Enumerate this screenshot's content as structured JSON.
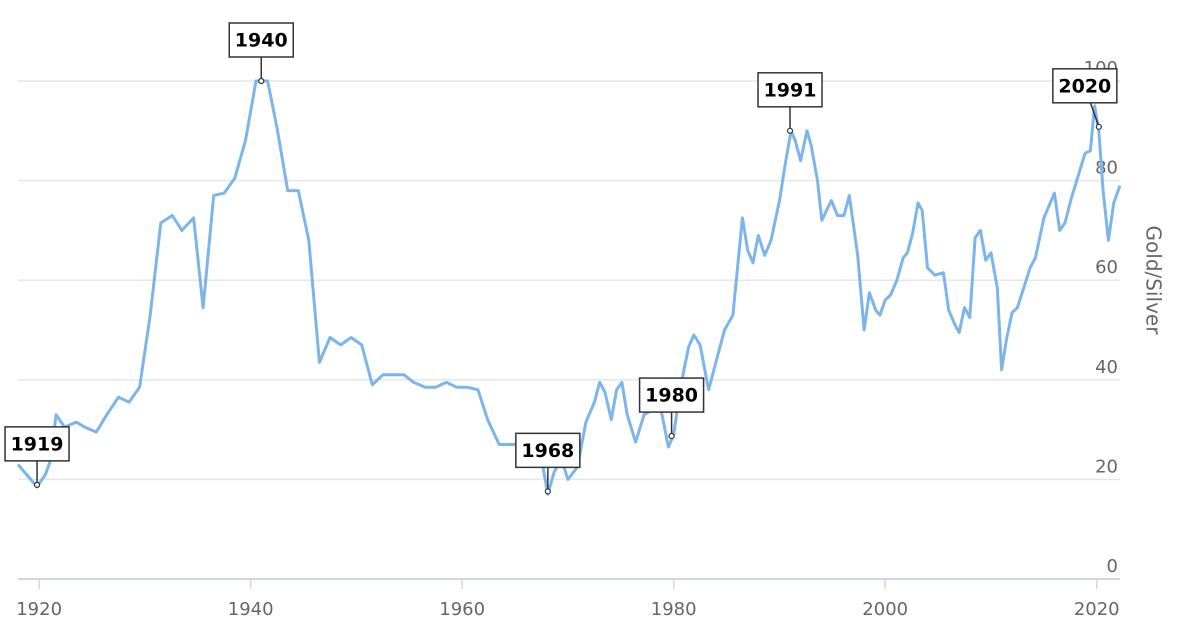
{
  "chart_data": {
    "type": "line",
    "y_label": "Gold/Silver",
    "xlim": [
      1918,
      2022.2
    ],
    "ylim": [
      0,
      100
    ],
    "xticks": [
      1920,
      1940,
      1960,
      1980,
      2000,
      2020
    ],
    "yticks": [
      0,
      20,
      40,
      60,
      80,
      100
    ],
    "grid": true,
    "series": [
      {
        "name": "Gold/Silver",
        "color": "#7cb5ec",
        "x": [
          1918.0,
          1919.0,
          1919.8,
          1920.6,
          1921.1,
          1921.6,
          1922.4,
          1923.5,
          1924.3,
          1925.4,
          1926.4,
          1927.5,
          1928.5,
          1929.5,
          1930.5,
          1931.5,
          1932.6,
          1933.5,
          1934.6,
          1935.5,
          1936.5,
          1937.5,
          1938.5,
          1939.5,
          1940.5,
          1941.6,
          1942.5,
          1943.5,
          1944.5,
          1945.5,
          1946.5,
          1947.5,
          1948.5,
          1949.5,
          1950.5,
          1951.5,
          1952.5,
          1954.5,
          1955.4,
          1956.5,
          1957.5,
          1958.5,
          1959.5,
          1960.5,
          1961.5,
          1962.4,
          1963.5,
          1964.5,
          1965.5,
          1966.5,
          1967.4,
          1968.1,
          1968.7,
          1969.4,
          1970.0,
          1970.9,
          1971.7,
          1972.5,
          1973.0,
          1973.5,
          1974.1,
          1974.6,
          1975.1,
          1975.6,
          1976.4,
          1977.2,
          1978.0,
          1978.8,
          1979.5,
          1980.0,
          1980.6,
          1981.4,
          1981.9,
          1982.5,
          1983.3,
          1984.8,
          1985.6,
          1986.5,
          1987.0,
          1987.5,
          1988.0,
          1988.6,
          1989.2,
          1990.0,
          1990.6,
          1991.1,
          1991.5,
          1992.0,
          1992.6,
          1993.0,
          1993.6,
          1994.0,
          1994.9,
          1995.5,
          1996.1,
          1996.6,
          1997.4,
          1998.0,
          1998.5,
          1999.1,
          1999.5,
          2000.0,
          2000.5,
          2001.1,
          2001.7,
          2002.1,
          2002.6,
          2003.1,
          2003.5,
          2004.0,
          2004.7,
          2005.5,
          2006.0,
          2006.6,
          2007.0,
          2007.5,
          2008.0,
          2008.5,
          2009.0,
          2009.5,
          2010.0,
          2010.6,
          2011.0,
          2011.5,
          2012.0,
          2012.5,
          2013.1,
          2013.7,
          2014.2,
          2015.0,
          2016.0,
          2016.5,
          2017.0,
          2017.6,
          2018.9,
          2019.4,
          2019.8,
          2020.2,
          2020.6,
          2021.1,
          2021.6,
          2022.2
        ],
        "values": [
          23,
          20.5,
          18.5,
          21,
          24,
          33,
          30.5,
          31.5,
          30.5,
          29.5,
          33,
          36.5,
          35.5,
          38.5,
          53,
          71.5,
          73,
          70,
          72.5,
          54.5,
          77,
          77.5,
          80.5,
          88,
          100,
          100,
          90.5,
          78,
          78,
          68,
          43.5,
          48.5,
          47,
          48.5,
          47,
          39,
          41,
          41,
          39.5,
          38.5,
          38.5,
          39.5,
          38.5,
          38.5,
          38,
          32,
          27,
          27,
          27,
          26.5,
          25.5,
          17,
          21.5,
          24,
          20,
          22.5,
          31.5,
          35.5,
          39.5,
          37.5,
          32,
          38,
          39.5,
          33,
          27.5,
          33,
          34,
          34,
          26.5,
          29,
          38,
          46.5,
          49,
          47,
          38,
          50,
          53,
          72.5,
          66,
          63.5,
          69,
          65,
          68,
          76,
          84,
          90,
          88,
          84,
          90,
          87,
          80,
          72,
          76,
          73,
          73,
          77,
          65,
          50,
          57.5,
          54,
          53,
          56,
          57,
          60,
          64.5,
          65.5,
          69.5,
          75.5,
          74,
          62.5,
          61,
          61.5,
          54,
          51,
          49.5,
          54.5,
          52.5,
          68.5,
          70,
          64,
          65.5,
          58.5,
          42,
          48.5,
          53.5,
          54.5,
          58.5,
          62.5,
          64.5,
          72.5,
          77.5,
          70,
          71.5,
          76.5,
          85.5,
          86,
          95,
          90,
          78,
          68,
          75.5,
          79
        ]
      }
    ],
    "annotations": [
      {
        "label": "1919",
        "x": 1919.8,
        "y": 18.9
      },
      {
        "label": "1940",
        "x": 1941.0,
        "y": 100
      },
      {
        "label": "1968",
        "x": 1968.1,
        "y": 17.6
      },
      {
        "label": "1980",
        "x": 1979.8,
        "y": 28.7
      },
      {
        "label": "1991",
        "x": 1991.0,
        "y": 90
      },
      {
        "label": "2020",
        "x": 2020.2,
        "y": 90.8
      }
    ]
  }
}
